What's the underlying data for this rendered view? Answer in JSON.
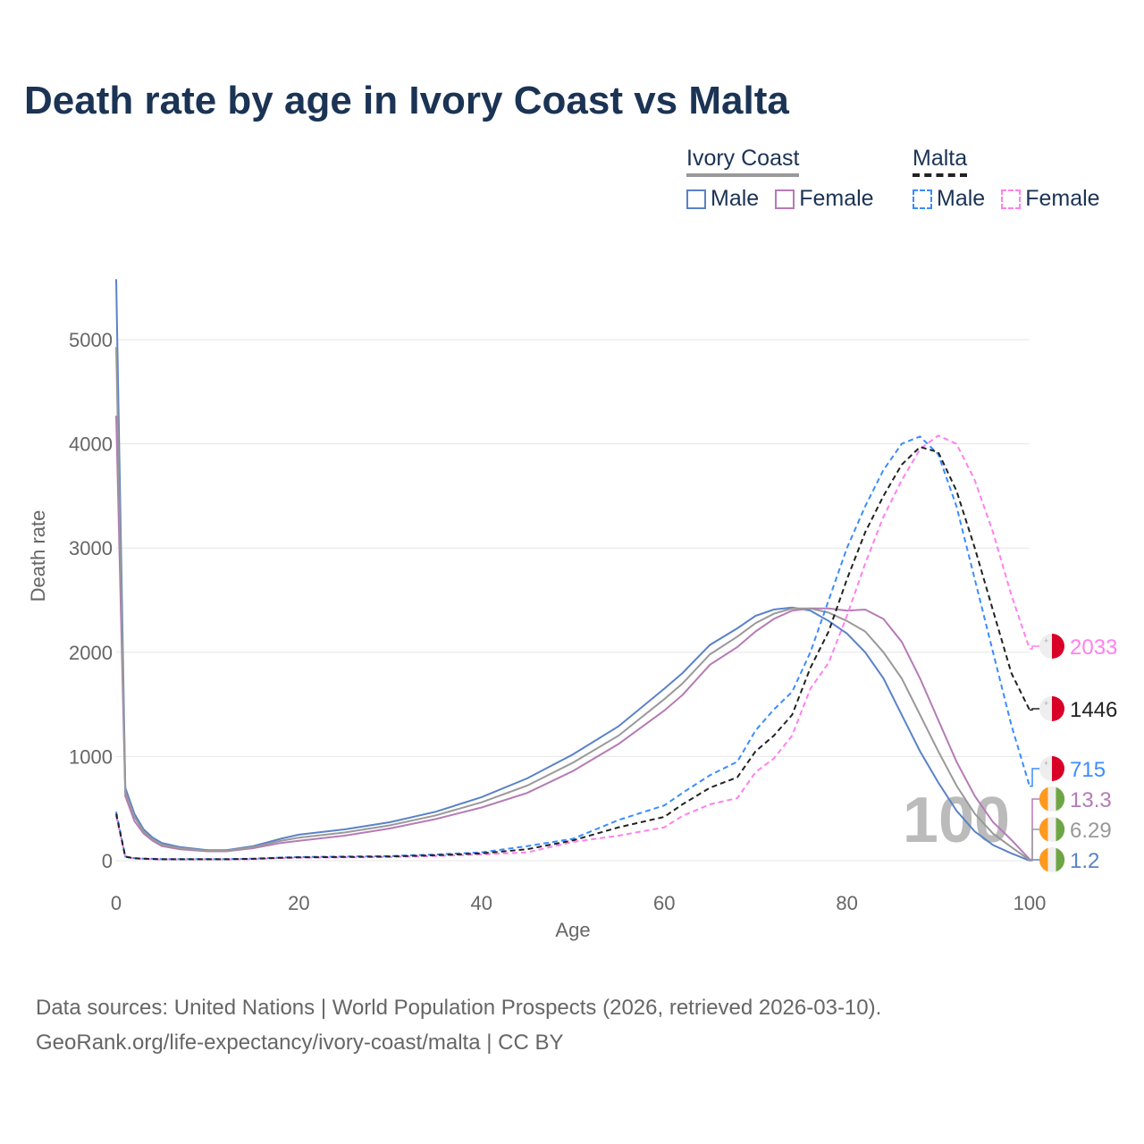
{
  "chart_data": {
    "type": "line",
    "title": "Death rate by age in Ivory Coast vs Malta",
    "xlabel": "Age",
    "ylabel": "Death rate",
    "xlim": [
      0,
      100
    ],
    "ylim": [
      0,
      5600
    ],
    "xticks": [
      "0",
      "20",
      "40",
      "60",
      "80",
      "100"
    ],
    "yticks": [
      "0",
      "1000",
      "2000",
      "3000",
      "4000",
      "5000"
    ],
    "grid": true,
    "highlight_age": "100",
    "x": [
      0,
      1,
      2,
      3,
      4,
      5,
      7,
      10,
      12,
      15,
      18,
      20,
      25,
      30,
      35,
      40,
      45,
      50,
      55,
      60,
      62,
      65,
      68,
      70,
      72,
      74,
      76,
      78,
      80,
      82,
      84,
      86,
      88,
      90,
      92,
      94,
      96,
      98,
      100
    ],
    "series": [
      {
        "name": "Ivory Coast Male",
        "country": "Ivory Coast",
        "color": "#5a82c8",
        "dash": false,
        "end_label": "1.2",
        "values": [
          5580,
          700,
          450,
          300,
          220,
          170,
          130,
          100,
          100,
          140,
          210,
          250,
          300,
          370,
          470,
          610,
          790,
          1020,
          1290,
          1650,
          1800,
          2070,
          2230,
          2350,
          2410,
          2430,
          2400,
          2300,
          2180,
          2000,
          1750,
          1400,
          1050,
          750,
          480,
          280,
          150,
          70,
          1.2
        ]
      },
      {
        "name": "Ivory Coast Female",
        "country": "Ivory Coast",
        "color": "#b57bb5",
        "dash": false,
        "end_label": "13.3",
        "values": [
          4270,
          620,
          380,
          260,
          190,
          140,
          110,
          90,
          90,
          120,
          170,
          190,
          240,
          310,
          400,
          510,
          650,
          860,
          1120,
          1440,
          1590,
          1880,
          2050,
          2200,
          2320,
          2400,
          2420,
          2420,
          2400,
          2410,
          2320,
          2100,
          1750,
          1350,
          950,
          620,
          370,
          200,
          13.3
        ]
      },
      {
        "name": "Ivory Coast Total",
        "country": "Ivory Coast",
        "color": "#999999",
        "dash": false,
        "end_label": "6.29",
        "values": [
          4930,
          660,
          420,
          280,
          205,
          155,
          120,
          95,
          95,
          130,
          190,
          220,
          270,
          340,
          435,
          560,
          720,
          940,
          1200,
          1550,
          1700,
          1980,
          2150,
          2280,
          2370,
          2420,
          2420,
          2380,
          2300,
          2200,
          2000,
          1750,
          1400,
          1050,
          720,
          450,
          260,
          130,
          6.29
        ]
      },
      {
        "name": "Malta Male",
        "country": "Malta",
        "color": "#3b8cff",
        "dash": true,
        "end_label": "715",
        "values": [
          470,
          40,
          25,
          20,
          18,
          15,
          15,
          15,
          15,
          20,
          30,
          35,
          40,
          45,
          60,
          80,
          140,
          210,
          390,
          530,
          650,
          820,
          950,
          1250,
          1450,
          1620,
          2000,
          2500,
          3000,
          3400,
          3750,
          4000,
          4070,
          3900,
          3400,
          2700,
          2000,
          1300,
          715
        ]
      },
      {
        "name": "Malta Female",
        "country": "Malta",
        "color": "#ff80ee",
        "dash": true,
        "end_label": "2033",
        "values": [
          430,
          35,
          22,
          18,
          15,
          13,
          13,
          13,
          13,
          15,
          25,
          30,
          32,
          35,
          45,
          60,
          80,
          180,
          240,
          320,
          430,
          540,
          600,
          850,
          980,
          1200,
          1650,
          1900,
          2350,
          2850,
          3300,
          3650,
          3950,
          4080,
          4000,
          3650,
          3150,
          2550,
          2033
        ]
      },
      {
        "name": "Malta Total",
        "country": "Malta",
        "color": "#222222",
        "dash": true,
        "end_label": "1446",
        "values": [
          450,
          38,
          23,
          19,
          16,
          14,
          14,
          14,
          14,
          18,
          28,
          32,
          36,
          40,
          52,
          70,
          110,
          195,
          320,
          420,
          540,
          700,
          800,
          1050,
          1200,
          1400,
          1850,
          2200,
          2700,
          3150,
          3500,
          3800,
          3970,
          3920,
          3550,
          3000,
          2400,
          1800,
          1446
        ]
      }
    ],
    "legend": {
      "placement": "top-right",
      "groups": [
        {
          "label": "Ivory Coast",
          "items": [
            {
              "label": "Male",
              "color": "#5a82c8"
            },
            {
              "label": "Female",
              "color": "#b57bb5"
            }
          ]
        },
        {
          "label": "Malta",
          "items": [
            {
              "label": "Male",
              "color": "#3b8cff"
            },
            {
              "label": "Female",
              "color": "#ff80ee"
            }
          ]
        }
      ]
    }
  },
  "footer": {
    "line1": "Data sources: United Nations | World Population Prospects (2026, retrieved 2026-03-10).",
    "line2": "GeoRank.org/life-expectancy/ivory-coast/malta | CC BY"
  }
}
